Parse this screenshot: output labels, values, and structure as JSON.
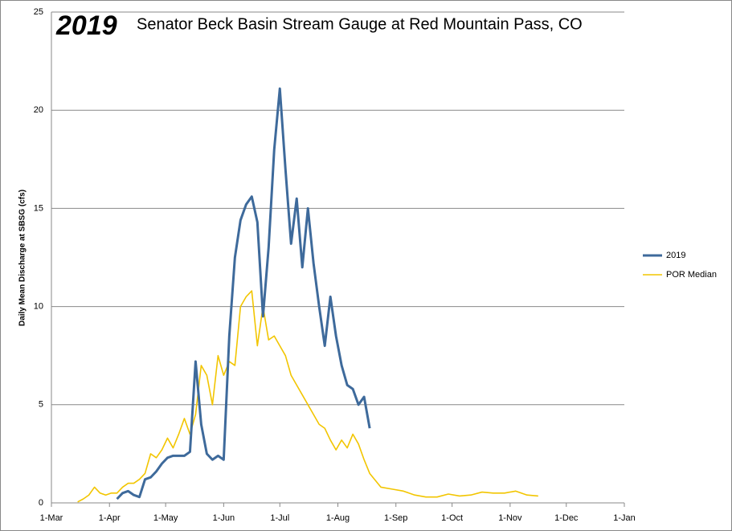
{
  "chart_data": {
    "type": "line",
    "year_label": "2019",
    "title": "Senator Beck Basin Stream Gauge at Red Mountain Pass, CO",
    "ylabel": "Daily Mean Discharge at SBSG (cfs)",
    "x": [
      "15-Mar",
      "18-Mar",
      "21-Mar",
      "24-Mar",
      "27-Mar",
      "30-Mar",
      "2-Apr",
      "5-Apr",
      "8-Apr",
      "11-Apr",
      "14-Apr",
      "17-Apr",
      "20-Apr",
      "23-Apr",
      "26-Apr",
      "29-Apr",
      "2-May",
      "5-May",
      "8-May",
      "11-May",
      "14-May",
      "17-May",
      "20-May",
      "23-May",
      "26-May",
      "29-May",
      "1-Jun",
      "4-Jun",
      "7-Jun",
      "10-Jun",
      "13-Jun",
      "16-Jun",
      "19-Jun",
      "22-Jun",
      "25-Jun",
      "28-Jun",
      "1-Jul",
      "4-Jul",
      "7-Jul",
      "10-Jul",
      "13-Jul",
      "16-Jul",
      "19-Jul",
      "22-Jul",
      "25-Jul",
      "28-Jul",
      "31-Jul",
      "3-Aug",
      "6-Aug",
      "9-Aug",
      "12-Aug",
      "15-Aug",
      "18-Aug",
      "24-Aug",
      "30-Aug",
      "5-Sep",
      "11-Sep",
      "17-Sep",
      "23-Sep",
      "29-Sep",
      "5-Oct",
      "11-Oct",
      "17-Oct",
      "23-Oct",
      "29-Oct",
      "4-Nov",
      "10-Nov",
      "16-Nov"
    ],
    "series": [
      {
        "name": "2019",
        "color": "#3e6a9b",
        "width": 3,
        "values": [
          null,
          null,
          null,
          null,
          null,
          null,
          null,
          0.2,
          0.5,
          0.6,
          0.4,
          0.3,
          1.2,
          1.3,
          1.6,
          2.0,
          2.3,
          2.4,
          2.4,
          2.4,
          2.6,
          7.2,
          4.0,
          2.5,
          2.2,
          2.4,
          2.2,
          8.5,
          12.5,
          14.4,
          15.2,
          15.6,
          14.3,
          9.5,
          13.0,
          18.0,
          21.1,
          17.0,
          13.2,
          15.5,
          12.0,
          15.0,
          12.2,
          10.0,
          8.0,
          10.5,
          8.5,
          7.0,
          6.0,
          5.8,
          5.0,
          5.4,
          3.8,
          null,
          null,
          null,
          null,
          null,
          null,
          null,
          null,
          null,
          null,
          null,
          null,
          null,
          null,
          null
        ]
      },
      {
        "name": "POR Median",
        "color": "#f2c500",
        "width": 1.6,
        "values": [
          0.05,
          0.2,
          0.4,
          0.8,
          0.5,
          0.4,
          0.5,
          0.5,
          0.8,
          1.0,
          1.0,
          1.2,
          1.5,
          2.5,
          2.3,
          2.7,
          3.3,
          2.8,
          3.5,
          4.3,
          3.5,
          4.5,
          7.0,
          6.5,
          5.0,
          7.5,
          6.5,
          7.2,
          7.0,
          10.0,
          10.5,
          10.8,
          8.0,
          10.0,
          8.3,
          8.5,
          8.0,
          7.5,
          6.5,
          6.0,
          5.5,
          5.0,
          4.5,
          4.0,
          3.8,
          3.2,
          2.7,
          3.2,
          2.8,
          3.5,
          3.0,
          2.2,
          1.5,
          0.8,
          0.7,
          0.6,
          0.4,
          0.3,
          0.3,
          0.45,
          0.35,
          0.4,
          0.55,
          0.5,
          0.5,
          0.6,
          0.4,
          0.35
        ]
      }
    ],
    "xlim": [
      "1-Mar",
      "1-Jan"
    ],
    "xticks": [
      "1-Mar",
      "1-Apr",
      "1-May",
      "1-Jun",
      "1-Jul",
      "1-Aug",
      "1-Sep",
      "1-Oct",
      "1-Nov",
      "1-Dec",
      "1-Jan"
    ],
    "ylim": [
      0,
      25
    ],
    "yticks": [
      0,
      5,
      10,
      15,
      20,
      25
    ],
    "grid": true,
    "legend": "right"
  }
}
